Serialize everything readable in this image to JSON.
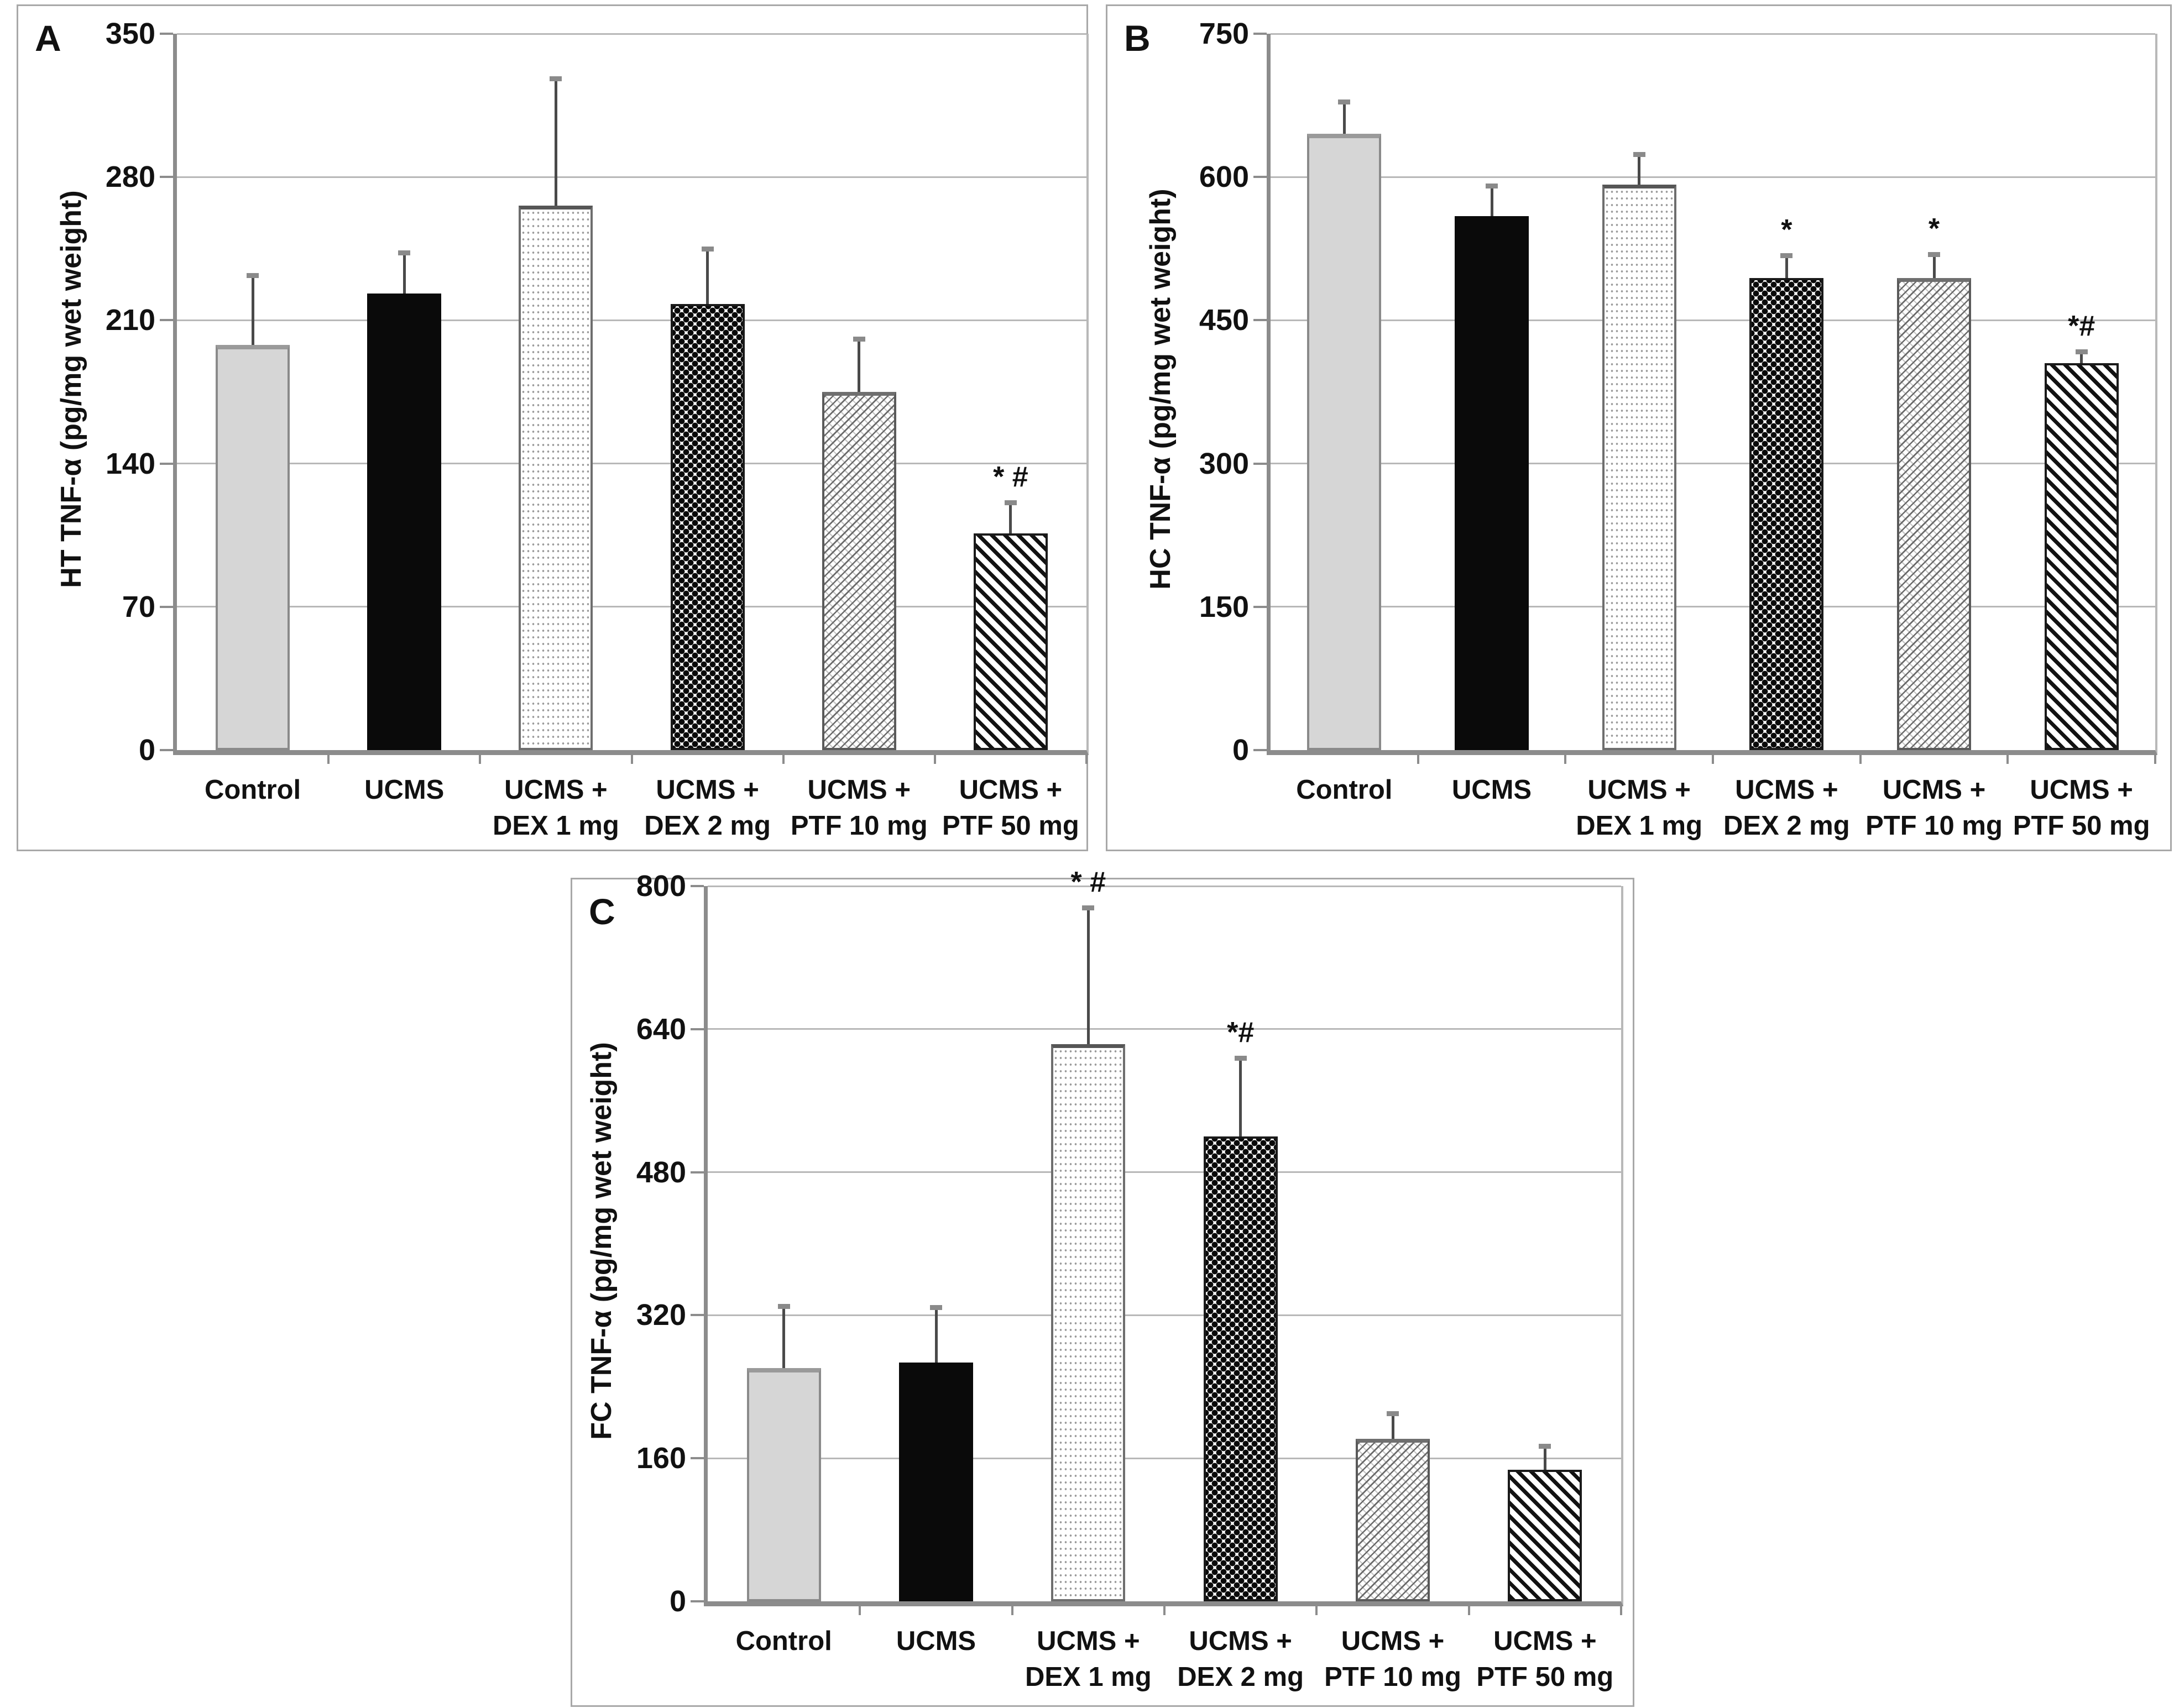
{
  "figure": {
    "description": "Three-panel bar figure of TNF-alpha levels (pg/mg wet weight) in HT, HC and FC brain regions across treatment groups",
    "panel_letters": [
      "A",
      "B",
      "C"
    ]
  },
  "colors": {
    "background": "#ffffff",
    "panel_border": "#a8a8a8",
    "axis": "#8c8c8c",
    "gridline": "#b8b8b8",
    "bar_grey_fill": "#d6d6d6",
    "bar_black_fill": "#0a0a0a",
    "pattern_ink": "#111111",
    "error_bar": "#4a4a4a",
    "text": "#111111"
  },
  "chart_data": [
    {
      "panel": "A",
      "type": "bar",
      "title": "",
      "xlabel": "",
      "ylabel": "HT TNF-α (pg/mg wet weight)",
      "ylim": [
        0,
        350
      ],
      "yticks": [
        0,
        70,
        140,
        210,
        280,
        350
      ],
      "grid": "horizontal",
      "legend": "none",
      "categories": [
        "Control",
        "UCMS",
        "UCMS +\nDEX 1 mg",
        "UCMS +\nDEX 2 mg",
        "UCMS +\nPTF 10 mg",
        "UCMS +\nPTF 50 mg"
      ],
      "values": [
        198,
        223,
        266,
        218,
        175,
        106
      ],
      "error_tops": [
        232,
        243,
        328,
        245,
        201,
        121
      ],
      "annotations": [
        "",
        "",
        "",
        "",
        "",
        "* #"
      ],
      "patterns": [
        "solid-grey",
        "solid-black",
        "dots-fine",
        "checker-bold",
        "crosshatch-light",
        "diagonal-bold"
      ]
    },
    {
      "panel": "B",
      "type": "bar",
      "title": "",
      "xlabel": "",
      "ylabel": "HC TNF-α (pg/mg wet weight)",
      "ylim": [
        0,
        750
      ],
      "yticks": [
        0,
        150,
        300,
        450,
        600,
        750
      ],
      "grid": "horizontal",
      "legend": "none",
      "categories": [
        "Control",
        "UCMS",
        "UCMS +\nDEX 1 mg",
        "UCMS +\nDEX 2 mg",
        "UCMS +\nPTF 10 mg",
        "UCMS +\nPTF 50 mg"
      ],
      "values": [
        645,
        559,
        592,
        494,
        494,
        405
      ],
      "error_tops": [
        679,
        591,
        624,
        518,
        519,
        417
      ],
      "annotations": [
        "",
        "",
        "",
        "*",
        "*",
        "*#"
      ],
      "patterns": [
        "solid-grey",
        "solid-black",
        "dots-fine",
        "checker-bold",
        "crosshatch-light",
        "diagonal-bold"
      ]
    },
    {
      "panel": "C",
      "type": "bar",
      "title": "",
      "xlabel": "",
      "ylabel": "FC TNF-α (pg/mg wet weight)",
      "ylim": [
        0,
        800
      ],
      "yticks": [
        0,
        160,
        320,
        480,
        640,
        800
      ],
      "grid": "horizontal",
      "legend": "none",
      "categories": [
        "Control",
        "UCMS",
        "UCMS +\nDEX 1 mg",
        "UCMS +\nDEX 2 mg",
        "UCMS +\nPTF 10 mg",
        "UCMS +\nPTF 50 mg"
      ],
      "values": [
        261,
        267,
        623,
        520,
        182,
        147
      ],
      "error_tops": [
        330,
        329,
        776,
        608,
        210,
        174
      ],
      "annotations": [
        "",
        "",
        "* #",
        "*#",
        "",
        ""
      ],
      "patterns": [
        "solid-grey",
        "solid-black",
        "dots-fine",
        "checker-bold",
        "crosshatch-light",
        "diagonal-bold"
      ]
    }
  ]
}
